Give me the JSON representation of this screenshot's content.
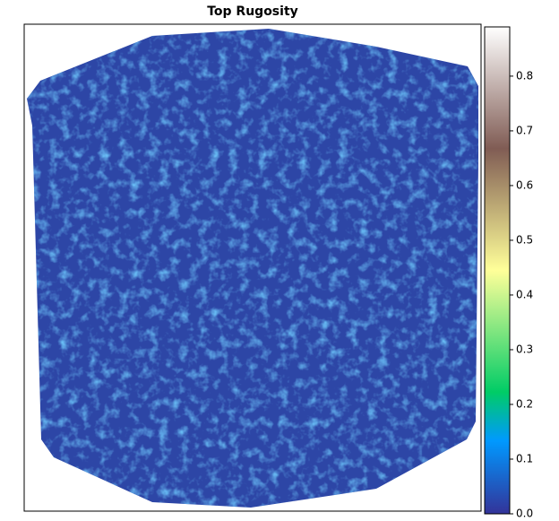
{
  "chart_data": {
    "type": "heatmap",
    "title": "Top Rugosity",
    "colormap": "terrain",
    "colorbar": {
      "clim": [
        0,
        0.89
      ],
      "ticks": [
        {
          "value": 0,
          "label": "0.0"
        },
        0.1,
        0.2,
        0.3,
        0.4,
        0.5,
        0.6,
        0.7,
        0.8
      ]
    }
  }
}
